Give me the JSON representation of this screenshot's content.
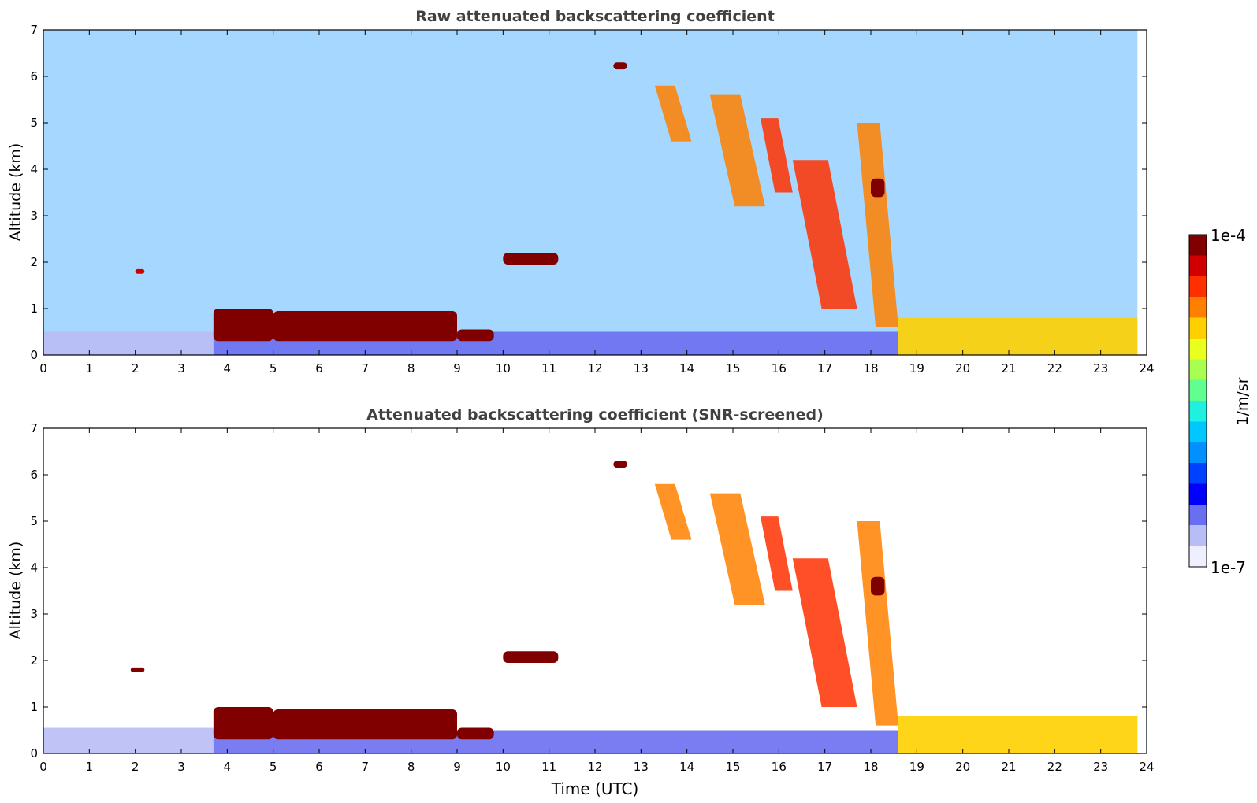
{
  "figure": {
    "xlabel": "Time (UTC)"
  },
  "colorbar": {
    "label": "1/m/sr",
    "max_label": "1e-4",
    "min_label": "1e-7",
    "scale": "log",
    "range": [
      1e-07,
      0.0001
    ],
    "colors": [
      "#eef0ff",
      "#b9bdf5",
      "#6a6ff0",
      "#0000ff",
      "#0040ff",
      "#0090ff",
      "#00c8ff",
      "#20f0e0",
      "#60ff90",
      "#a8ff50",
      "#e8ff20",
      "#ffd000",
      "#ff8000",
      "#ff3000",
      "#d00000",
      "#800000"
    ]
  },
  "chart_data": [
    {
      "type": "heatmap",
      "title": "Raw attenuated backscattering coefficient",
      "xlabel": "",
      "ylabel": "Altitude (km)",
      "xlim": [
        0,
        24
      ],
      "ylim": [
        0,
        7
      ],
      "xticks": [
        "0",
        "1",
        "2",
        "3",
        "4",
        "5",
        "6",
        "7",
        "8",
        "9",
        "10",
        "11",
        "12",
        "13",
        "14",
        "15",
        "16",
        "17",
        "18",
        "19",
        "20",
        "21",
        "22",
        "23",
        "24"
      ],
      "yticks": [
        "0",
        "1",
        "2",
        "3",
        "4",
        "5",
        "6",
        "7"
      ],
      "features": [
        {
          "kind": "noise_background",
          "x": [
            0,
            23.8
          ],
          "y": [
            0,
            7
          ],
          "value": 1e-06
        },
        {
          "kind": "boundary_layer",
          "x": [
            0,
            3.7
          ],
          "y": [
            0,
            0.5
          ],
          "value": 2e-07
        },
        {
          "kind": "boundary_layer",
          "x": [
            3.7,
            18.6
          ],
          "y": [
            0,
            0.5
          ],
          "value": 3e-07
        },
        {
          "kind": "boundary_layer",
          "x": [
            18.6,
            23.8
          ],
          "y": [
            0,
            0.8
          ],
          "value": 1.5e-05
        },
        {
          "kind": "cloud_layer",
          "x": [
            3.7,
            5.0
          ],
          "y": [
            0.3,
            1.0
          ],
          "value": 8e-05
        },
        {
          "kind": "cloud_layer",
          "x": [
            5.0,
            9.0
          ],
          "y": [
            0.3,
            0.95
          ],
          "value": 8e-05
        },
        {
          "kind": "cloud_layer",
          "x": [
            9.0,
            9.8
          ],
          "y": [
            0.3,
            0.55
          ],
          "value": 8e-05
        },
        {
          "kind": "cloud_layer",
          "x": [
            10.0,
            11.2
          ],
          "y": [
            1.95,
            2.2
          ],
          "value": 9e-05
        },
        {
          "kind": "cloud_layer",
          "x": [
            12.4,
            12.7
          ],
          "y": [
            6.15,
            6.3
          ],
          "value": 9e-05
        },
        {
          "kind": "cloud_layer",
          "x": [
            2.0,
            2.2
          ],
          "y": [
            1.75,
            1.85
          ],
          "value": 5e-05
        },
        {
          "kind": "cirrus_fallstreak",
          "x": [
            13.3,
            14.1
          ],
          "y": [
            4.6,
            5.8
          ],
          "value": 2e-05
        },
        {
          "kind": "cirrus_fallstreak",
          "x": [
            14.5,
            15.7
          ],
          "y": [
            3.2,
            5.6
          ],
          "value": 2e-05
        },
        {
          "kind": "cirrus_fallstreak",
          "x": [
            15.6,
            16.3
          ],
          "y": [
            3.5,
            5.1
          ],
          "value": 4e-05
        },
        {
          "kind": "cirrus_fallstreak",
          "x": [
            16.3,
            17.7
          ],
          "y": [
            1.0,
            4.2
          ],
          "value": 3e-05
        },
        {
          "kind": "cirrus_fallstreak",
          "x": [
            17.7,
            18.6
          ],
          "y": [
            0.6,
            5.0
          ],
          "value": 2e-05
        },
        {
          "kind": "cloud_layer",
          "x": [
            18.0,
            18.3
          ],
          "y": [
            3.4,
            3.8
          ],
          "value": 9e-05
        }
      ]
    },
    {
      "type": "heatmap",
      "title": "Attenuated backscattering coefficient (SNR-screened)",
      "xlabel": "Time (UTC)",
      "ylabel": "Altitude (km)",
      "xlim": [
        0,
        24
      ],
      "ylim": [
        0,
        7
      ],
      "xticks": [
        "0",
        "1",
        "2",
        "3",
        "4",
        "5",
        "6",
        "7",
        "8",
        "9",
        "10",
        "11",
        "12",
        "13",
        "14",
        "15",
        "16",
        "17",
        "18",
        "19",
        "20",
        "21",
        "22",
        "23",
        "24"
      ],
      "yticks": [
        "0",
        "1",
        "2",
        "3",
        "4",
        "5",
        "6",
        "7"
      ],
      "features": [
        {
          "kind": "boundary_layer",
          "x": [
            0,
            3.7
          ],
          "y": [
            0,
            0.55
          ],
          "value": 2e-07
        },
        {
          "kind": "boundary_layer",
          "x": [
            3.7,
            18.6
          ],
          "y": [
            0,
            0.5
          ],
          "value": 3e-07
        },
        {
          "kind": "boundary_layer",
          "x": [
            18.6,
            23.8
          ],
          "y": [
            0,
            0.8
          ],
          "value": 1.5e-05
        },
        {
          "kind": "cloud_layer",
          "x": [
            3.7,
            5.0
          ],
          "y": [
            0.3,
            1.0
          ],
          "value": 0.0001
        },
        {
          "kind": "cloud_layer",
          "x": [
            5.0,
            9.0
          ],
          "y": [
            0.3,
            0.95
          ],
          "value": 0.0001
        },
        {
          "kind": "cloud_layer",
          "x": [
            9.0,
            9.8
          ],
          "y": [
            0.3,
            0.55
          ],
          "value": 0.0001
        },
        {
          "kind": "cloud_layer",
          "x": [
            10.0,
            11.2
          ],
          "y": [
            1.95,
            2.2
          ],
          "value": 0.0001
        },
        {
          "kind": "cloud_layer",
          "x": [
            12.4,
            12.7
          ],
          "y": [
            6.15,
            6.3
          ],
          "value": 0.0001
        },
        {
          "kind": "cloud_layer",
          "x": [
            1.9,
            2.2
          ],
          "y": [
            1.75,
            1.85
          ],
          "value": 0.0001
        },
        {
          "kind": "cirrus_fallstreak",
          "x": [
            13.3,
            14.1
          ],
          "y": [
            4.6,
            5.8
          ],
          "value": 2e-05
        },
        {
          "kind": "cirrus_fallstreak",
          "x": [
            14.5,
            15.7
          ],
          "y": [
            3.2,
            5.6
          ],
          "value": 2e-05
        },
        {
          "kind": "cirrus_fallstreak",
          "x": [
            15.6,
            16.3
          ],
          "y": [
            3.5,
            5.1
          ],
          "value": 4e-05
        },
        {
          "kind": "cirrus_fallstreak",
          "x": [
            16.3,
            17.7
          ],
          "y": [
            1.0,
            4.2
          ],
          "value": 3e-05
        },
        {
          "kind": "cirrus_fallstreak",
          "x": [
            17.7,
            18.6
          ],
          "y": [
            0.6,
            5.0
          ],
          "value": 2e-05
        },
        {
          "kind": "cloud_layer",
          "x": [
            18.0,
            18.3
          ],
          "y": [
            3.4,
            3.8
          ],
          "value": 0.0001
        }
      ]
    }
  ]
}
